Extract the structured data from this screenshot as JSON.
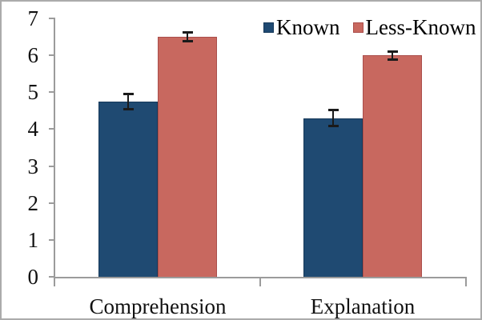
{
  "chart_data": {
    "type": "bar",
    "title": "",
    "xlabel": "",
    "ylabel": "",
    "categories": [
      "Comprehension",
      "Explanation"
    ],
    "series": [
      {
        "name": "Known",
        "color": "#1F4A72",
        "border_color": "#16395A",
        "values": [
          4.75,
          4.3
        ],
        "errors": [
          0.2,
          0.2
        ]
      },
      {
        "name": "Less-Known",
        "color": "#C8685F",
        "border_color": "#AB4E4B",
        "values": [
          6.5,
          6.0
        ],
        "errors": [
          0.1,
          0.1
        ]
      }
    ],
    "ylim": [
      0,
      7
    ],
    "yticks": [
      0,
      1,
      2,
      3,
      4,
      5,
      6,
      7
    ],
    "grid": false,
    "legend_position": "top-right",
    "error_bars": true,
    "error_bar_color": "#1A1A1A",
    "axis_color": "#9B9B9B",
    "text_color": "#111111",
    "frame_color": "#ABABAB",
    "background_color": "#FFFFFF"
  }
}
